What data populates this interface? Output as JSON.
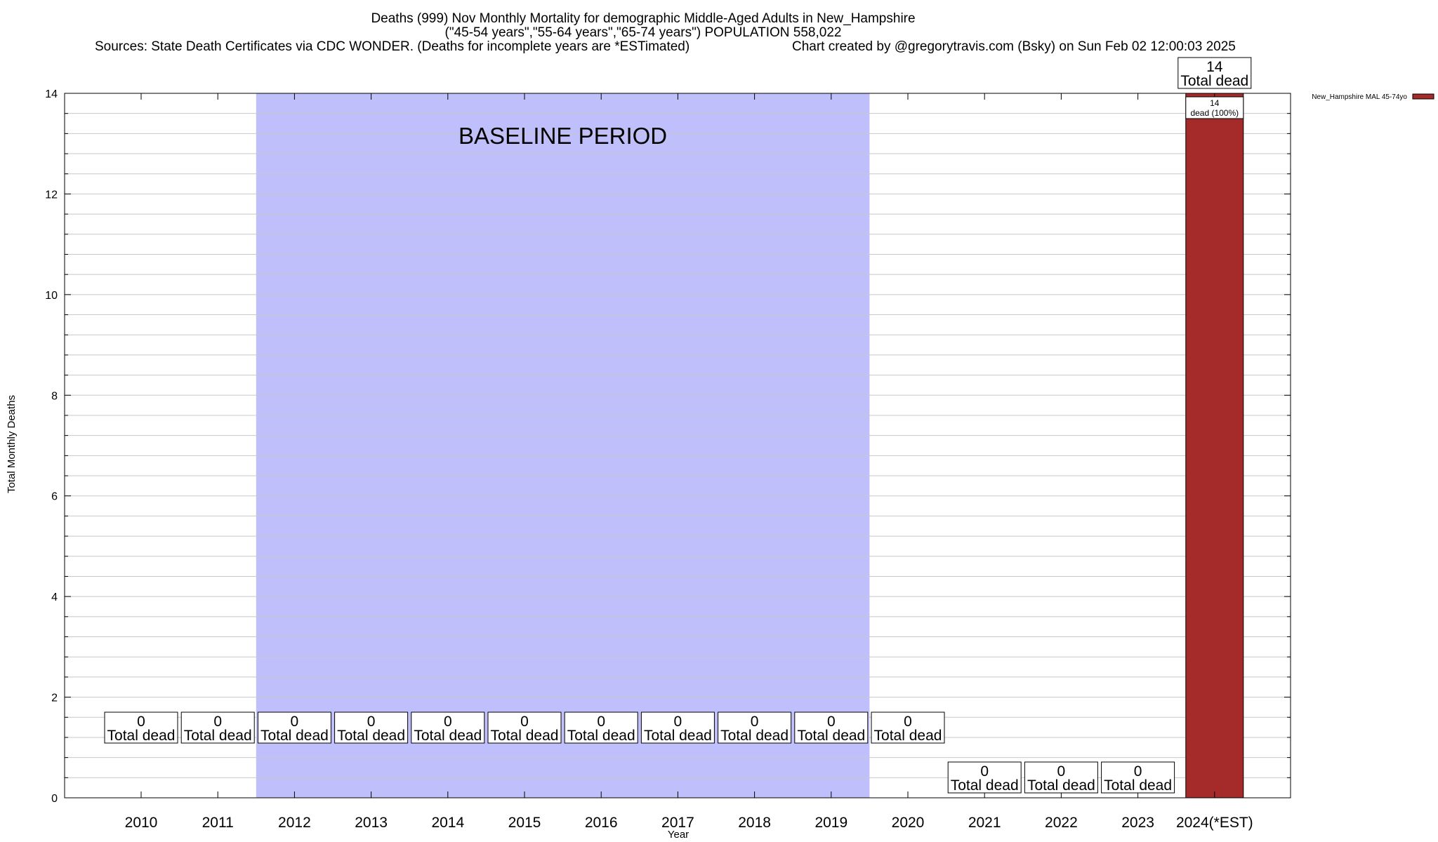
{
  "header": {
    "line1": "Deaths (999) Nov Monthly Mortality for demographic Middle-Aged Adults in New_Hampshire",
    "line2": "(\"45-54 years\",\"55-64 years\",\"65-74 years\") POPULATION 558,022",
    "sources": "Sources: State Death Certificates via CDC WONDER. (Deaths for incomplete years are *ESTimated)",
    "credit": "Chart created by @gregorytravis.com (Bsky) on Sun Feb 02 12:00:03 2025"
  },
  "colors": {
    "bar": "#a52a2a",
    "baseline_band": "#bfbffc",
    "grid": "#c8c8c8"
  },
  "chart_data": {
    "type": "bar",
    "xlabel": "Year",
    "ylabel": "Total Monthly Deaths",
    "ylim": [
      0,
      14
    ],
    "y_ticks": [
      0,
      2,
      4,
      6,
      8,
      10,
      12,
      14
    ],
    "grid": true,
    "legend_position": "top-right",
    "categories": [
      "2010",
      "2011",
      "2012",
      "2013",
      "2014",
      "2015",
      "2016",
      "2017",
      "2018",
      "2019",
      "2020",
      "2021",
      "2022",
      "2023",
      "2024(*EST)"
    ],
    "series": [
      {
        "name": "New_Hampshire MAL 45-74yo",
        "values": [
          0,
          0,
          0,
          0,
          0,
          0,
          0,
          0,
          0,
          0,
          0,
          0,
          0,
          0,
          14
        ]
      }
    ],
    "total_label_suffix": "Total dead",
    "bar_share_labels": [
      {
        "category": "2024(*EST)",
        "line1": "14",
        "line2": "dead (100%)"
      }
    ],
    "baseline_period": {
      "label": "BASELINE PERIOD",
      "from": "2012",
      "to": "2019"
    }
  }
}
